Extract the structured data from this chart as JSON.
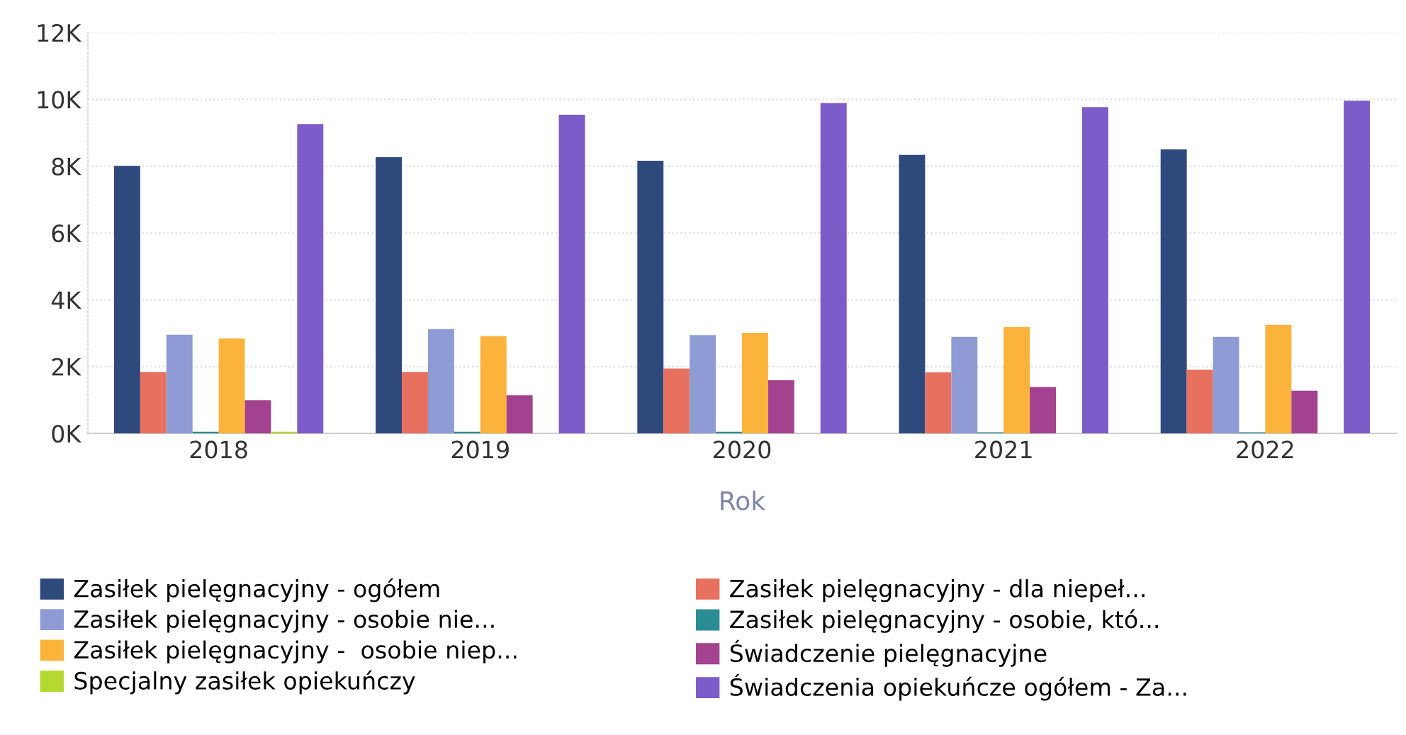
{
  "chart_data": {
    "type": "bar",
    "xlabel": "Rok",
    "categories": [
      "2018",
      "2019",
      "2020",
      "2021",
      "2022"
    ],
    "series": [
      {
        "name": "Zasiłek pielęgnacyjny - ogółem",
        "color": "#2e4a7d",
        "values": [
          8010,
          8270,
          8160,
          8340,
          8500
        ]
      },
      {
        "name": "Zasiłek pielęgnacyjny - dla niepeł...",
        "color": "#e8705f",
        "values": [
          1840,
          1840,
          1940,
          1830,
          1910
        ]
      },
      {
        "name": "Zasiłek pielęgnacyjny - osobie nie...",
        "color": "#8f9bd4",
        "values": [
          2950,
          3120,
          2940,
          2890,
          2890
        ]
      },
      {
        "name": "Zasiłek pielęgnacyjny - osobie, któ...",
        "color": "#2a8c94",
        "values": [
          50,
          50,
          50,
          30,
          30
        ]
      },
      {
        "name": "Zasiłek pielęgnacyjny -  osobie niep...",
        "color": "#fbb33b",
        "values": [
          2840,
          2910,
          3010,
          3180,
          3250
        ]
      },
      {
        "name": "Świadczenie pielęgnacyjne",
        "color": "#a3428f",
        "values": [
          990,
          1140,
          1590,
          1390,
          1280
        ]
      },
      {
        "name": "Specjalny zasiłek opiekuńczy",
        "color": "#b5d930",
        "values": [
          50,
          0,
          0,
          0,
          0
        ]
      },
      {
        "name": "Świadczenia opiekuńcze ogółem - Za...",
        "color": "#7b5cc8",
        "values": [
          9260,
          9540,
          9890,
          9770,
          9960
        ]
      }
    ],
    "ylim": [
      0,
      12000
    ],
    "yticks": [
      {
        "value": 0,
        "label": "0K"
      },
      {
        "value": 2000,
        "label": "2K"
      },
      {
        "value": 4000,
        "label": "4K"
      },
      {
        "value": 6000,
        "label": "6K"
      },
      {
        "value": 8000,
        "label": "8K"
      },
      {
        "value": 10000,
        "label": "10K"
      },
      {
        "value": 12000,
        "label": "12K"
      }
    ],
    "grid": "y",
    "legend": "bottom"
  }
}
